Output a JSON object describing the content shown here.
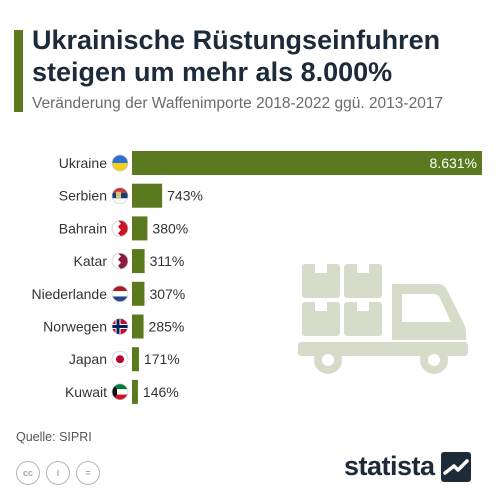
{
  "header": {
    "title_line1": "Ukrainische Rüstungseinfuhren",
    "title_line2": "steigen um mehr als 8.000%",
    "subtitle": "Veränderung der Waffenimporte 2018-2022 ggü. 2013-2017"
  },
  "colors": {
    "accent": "#5b7a1f",
    "bar": "#5b7a1f",
    "title": "#1c2a3a",
    "truck": "#d6dcc9"
  },
  "chart_data": {
    "type": "bar",
    "orientation": "horizontal",
    "title": "Ukrainische Rüstungseinfuhren steigen um mehr als 8.000%",
    "subtitle": "Veränderung der Waffenimporte 2018-2022 ggü. 2013-2017",
    "categories": [
      "Ukraine",
      "Serbien",
      "Bahrain",
      "Katar",
      "Niederlande",
      "Norwegen",
      "Japan",
      "Kuwait"
    ],
    "values": [
      8631,
      743,
      380,
      311,
      307,
      285,
      171,
      146
    ],
    "value_labels": [
      "8.631%",
      "743%",
      "380%",
      "311%",
      "307%",
      "285%",
      "171%",
      "146%"
    ],
    "flag_icons": [
      "flag-ukraine-icon",
      "flag-serbia-icon",
      "flag-bahrain-icon",
      "flag-qatar-icon",
      "flag-netherlands-icon",
      "flag-norway-icon",
      "flag-japan-icon",
      "flag-kuwait-icon"
    ],
    "xlim": [
      0,
      8631
    ],
    "grid": false,
    "legend": "none"
  },
  "decoration": {
    "icon": "truck-with-boxes-icon"
  },
  "footer": {
    "source": "Quelle: SIPRI",
    "license_icons": [
      "cc-icon",
      "by-icon",
      "nd-icon"
    ],
    "license_texts": [
      "cc",
      "i",
      "="
    ],
    "brand": "statista",
    "brand_icon": "statista-logo-icon"
  }
}
